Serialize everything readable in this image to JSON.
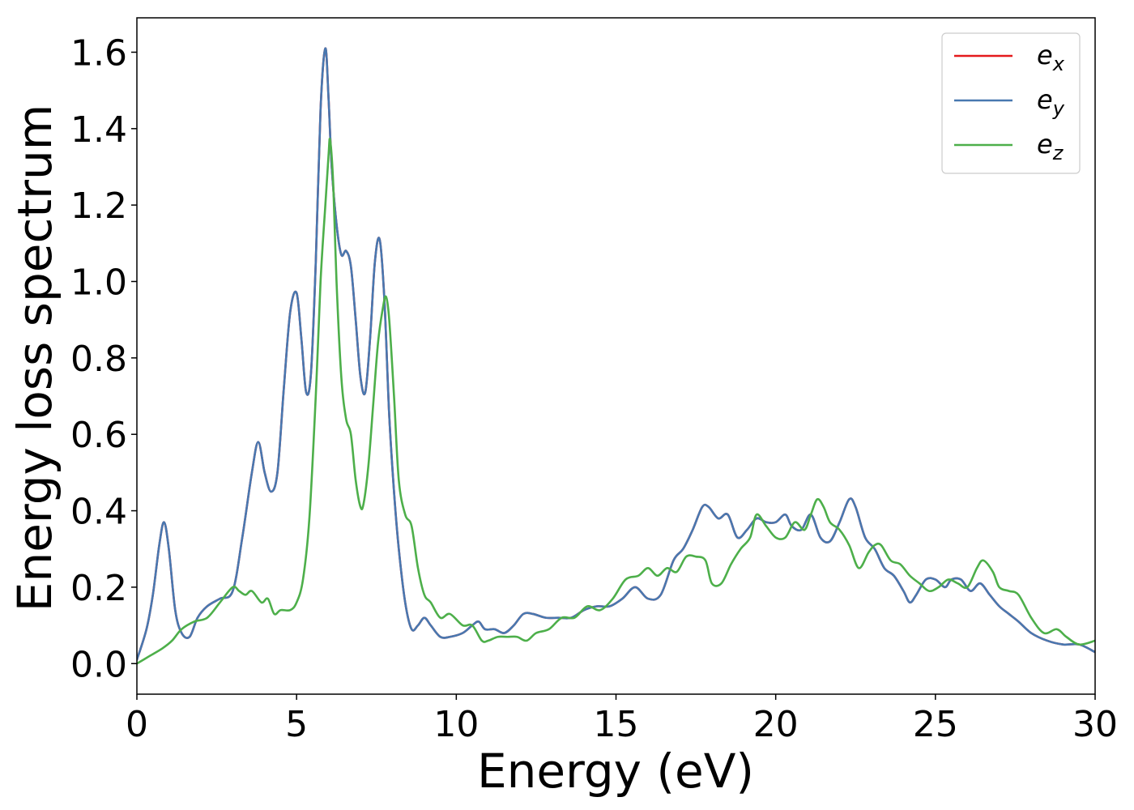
{
  "chart_data": {
    "type": "line",
    "title": "",
    "xlabel": "Energy (eV)",
    "ylabel": "Energy loss spectrum",
    "xlim": [
      0,
      30
    ],
    "ylim": [
      -0.08,
      1.69
    ],
    "x_ticks": [
      0,
      5,
      10,
      15,
      20,
      25,
      30
    ],
    "x_tick_labels": [
      "0",
      "5",
      "10",
      "15",
      "20",
      "25",
      "30"
    ],
    "y_ticks": [
      0.0,
      0.2,
      0.4,
      0.6,
      0.8,
      1.0,
      1.2,
      1.4,
      1.6
    ],
    "y_tick_labels": [
      "0.0",
      "0.2",
      "0.4",
      "0.6",
      "0.8",
      "1.0",
      "1.2",
      "1.4",
      "1.6"
    ],
    "grid": false,
    "legend_position": "top-right",
    "series": [
      {
        "name": "e",
        "subscript": "x",
        "color": "#e41a1c",
        "x": [
          0,
          0.3,
          0.5,
          0.7,
          0.85,
          1.0,
          1.2,
          1.4,
          1.65,
          1.9,
          2.2,
          2.6,
          3.0,
          3.3,
          3.6,
          3.8,
          4.0,
          4.2,
          4.4,
          4.6,
          4.8,
          5.0,
          5.15,
          5.3,
          5.45,
          5.6,
          5.75,
          5.9,
          6.0,
          6.1,
          6.25,
          6.4,
          6.55,
          6.7,
          6.85,
          7.0,
          7.15,
          7.3,
          7.45,
          7.6,
          7.75,
          7.9,
          8.05,
          8.2,
          8.4,
          8.6,
          8.8,
          9.0,
          9.2,
          9.5,
          9.8,
          10.2,
          10.5,
          10.7,
          10.9,
          11.2,
          11.5,
          11.8,
          12.1,
          12.4,
          12.8,
          13.2,
          13.6,
          14.0,
          14.4,
          14.8,
          15.2,
          15.6,
          16.0,
          16.4,
          16.8,
          17.1,
          17.4,
          17.7,
          17.9,
          18.2,
          18.5,
          18.8,
          19.1,
          19.4,
          19.7,
          20.0,
          20.3,
          20.5,
          20.8,
          21.1,
          21.4,
          21.7,
          22.0,
          22.3,
          22.5,
          22.8,
          23.1,
          23.4,
          23.7,
          24.0,
          24.2,
          24.4,
          24.7,
          25.0,
          25.3,
          25.5,
          25.8,
          26.1,
          26.4,
          26.7,
          27.0,
          27.3,
          27.6,
          28.0,
          28.5,
          29.0,
          29.5,
          30.0
        ],
        "y": [
          0.01,
          0.09,
          0.18,
          0.31,
          0.37,
          0.3,
          0.14,
          0.08,
          0.07,
          0.12,
          0.15,
          0.17,
          0.19,
          0.33,
          0.5,
          0.58,
          0.5,
          0.45,
          0.5,
          0.72,
          0.92,
          0.97,
          0.85,
          0.71,
          0.76,
          1.05,
          1.45,
          1.61,
          1.48,
          1.3,
          1.15,
          1.07,
          1.08,
          1.04,
          0.9,
          0.75,
          0.71,
          0.85,
          1.05,
          1.11,
          0.95,
          0.65,
          0.45,
          0.3,
          0.16,
          0.09,
          0.1,
          0.12,
          0.1,
          0.07,
          0.07,
          0.08,
          0.1,
          0.11,
          0.09,
          0.09,
          0.08,
          0.1,
          0.13,
          0.13,
          0.12,
          0.12,
          0.12,
          0.14,
          0.15,
          0.15,
          0.17,
          0.2,
          0.17,
          0.18,
          0.27,
          0.3,
          0.35,
          0.41,
          0.41,
          0.38,
          0.39,
          0.33,
          0.35,
          0.38,
          0.37,
          0.37,
          0.39,
          0.36,
          0.35,
          0.39,
          0.33,
          0.32,
          0.37,
          0.43,
          0.41,
          0.33,
          0.3,
          0.25,
          0.23,
          0.19,
          0.16,
          0.18,
          0.22,
          0.22,
          0.2,
          0.22,
          0.22,
          0.19,
          0.21,
          0.18,
          0.15,
          0.13,
          0.11,
          0.08,
          0.06,
          0.05,
          0.05,
          0.03
        ]
      },
      {
        "name": "e",
        "subscript": "y",
        "color": "#4878b0",
        "x": [
          0,
          0.3,
          0.5,
          0.7,
          0.85,
          1.0,
          1.2,
          1.4,
          1.65,
          1.9,
          2.2,
          2.6,
          3.0,
          3.3,
          3.6,
          3.8,
          4.0,
          4.2,
          4.4,
          4.6,
          4.8,
          5.0,
          5.15,
          5.3,
          5.45,
          5.6,
          5.75,
          5.9,
          6.0,
          6.1,
          6.25,
          6.4,
          6.55,
          6.7,
          6.85,
          7.0,
          7.15,
          7.3,
          7.45,
          7.6,
          7.75,
          7.9,
          8.05,
          8.2,
          8.4,
          8.6,
          8.8,
          9.0,
          9.2,
          9.5,
          9.8,
          10.2,
          10.5,
          10.7,
          10.9,
          11.2,
          11.5,
          11.8,
          12.1,
          12.4,
          12.8,
          13.2,
          13.6,
          14.0,
          14.4,
          14.8,
          15.2,
          15.6,
          16.0,
          16.4,
          16.8,
          17.1,
          17.4,
          17.7,
          17.9,
          18.2,
          18.5,
          18.8,
          19.1,
          19.4,
          19.7,
          20.0,
          20.3,
          20.5,
          20.8,
          21.1,
          21.4,
          21.7,
          22.0,
          22.3,
          22.5,
          22.8,
          23.1,
          23.4,
          23.7,
          24.0,
          24.2,
          24.4,
          24.7,
          25.0,
          25.3,
          25.5,
          25.8,
          26.1,
          26.4,
          26.7,
          27.0,
          27.3,
          27.6,
          28.0,
          28.5,
          29.0,
          29.5,
          30.0
        ],
        "y": [
          0.01,
          0.09,
          0.18,
          0.31,
          0.37,
          0.3,
          0.14,
          0.08,
          0.07,
          0.12,
          0.15,
          0.17,
          0.19,
          0.33,
          0.5,
          0.58,
          0.5,
          0.45,
          0.5,
          0.72,
          0.92,
          0.97,
          0.85,
          0.71,
          0.76,
          1.05,
          1.45,
          1.61,
          1.48,
          1.3,
          1.15,
          1.07,
          1.08,
          1.04,
          0.9,
          0.75,
          0.71,
          0.85,
          1.05,
          1.11,
          0.95,
          0.65,
          0.45,
          0.3,
          0.16,
          0.09,
          0.1,
          0.12,
          0.1,
          0.07,
          0.07,
          0.08,
          0.1,
          0.11,
          0.09,
          0.09,
          0.08,
          0.1,
          0.13,
          0.13,
          0.12,
          0.12,
          0.12,
          0.14,
          0.15,
          0.15,
          0.17,
          0.2,
          0.17,
          0.18,
          0.27,
          0.3,
          0.35,
          0.41,
          0.41,
          0.38,
          0.39,
          0.33,
          0.35,
          0.38,
          0.37,
          0.37,
          0.39,
          0.36,
          0.35,
          0.39,
          0.33,
          0.32,
          0.37,
          0.43,
          0.41,
          0.33,
          0.3,
          0.25,
          0.23,
          0.19,
          0.16,
          0.18,
          0.22,
          0.22,
          0.2,
          0.22,
          0.22,
          0.19,
          0.21,
          0.18,
          0.15,
          0.13,
          0.11,
          0.08,
          0.06,
          0.05,
          0.05,
          0.03
        ]
      },
      {
        "name": "e",
        "subscript": "z",
        "color": "#4daf4a",
        "x": [
          0,
          0.4,
          0.8,
          1.1,
          1.4,
          1.8,
          2.2,
          2.6,
          3.0,
          3.2,
          3.4,
          3.6,
          3.9,
          4.1,
          4.3,
          4.5,
          4.8,
          5.0,
          5.2,
          5.4,
          5.6,
          5.75,
          5.9,
          6.0,
          6.05,
          6.15,
          6.25,
          6.4,
          6.55,
          6.7,
          6.85,
          7.0,
          7.1,
          7.25,
          7.4,
          7.55,
          7.7,
          7.8,
          7.9,
          8.05,
          8.2,
          8.4,
          8.6,
          8.8,
          9.0,
          9.2,
          9.5,
          9.8,
          10.2,
          10.5,
          10.8,
          11.0,
          11.3,
          11.6,
          11.9,
          12.2,
          12.5,
          12.9,
          13.3,
          13.7,
          14.1,
          14.5,
          14.9,
          15.3,
          15.7,
          16.0,
          16.3,
          16.6,
          16.9,
          17.2,
          17.5,
          17.8,
          18.0,
          18.3,
          18.6,
          18.9,
          19.2,
          19.4,
          19.7,
          20.0,
          20.3,
          20.6,
          20.9,
          21.1,
          21.3,
          21.5,
          21.7,
          22.0,
          22.3,
          22.6,
          22.9,
          23.1,
          23.3,
          23.6,
          23.9,
          24.2,
          24.5,
          24.8,
          25.1,
          25.4,
          25.7,
          26.0,
          26.3,
          26.5,
          26.8,
          27.0,
          27.3,
          27.6,
          28.0,
          28.4,
          28.8,
          29.1,
          29.5,
          30.0
        ],
        "y": [
          0.0,
          0.02,
          0.04,
          0.06,
          0.09,
          0.11,
          0.12,
          0.16,
          0.2,
          0.19,
          0.18,
          0.19,
          0.16,
          0.17,
          0.13,
          0.14,
          0.14,
          0.16,
          0.22,
          0.38,
          0.7,
          1.0,
          1.2,
          1.33,
          1.37,
          1.25,
          1.0,
          0.75,
          0.64,
          0.6,
          0.48,
          0.41,
          0.42,
          0.52,
          0.68,
          0.84,
          0.93,
          0.96,
          0.9,
          0.7,
          0.48,
          0.39,
          0.36,
          0.25,
          0.18,
          0.16,
          0.12,
          0.13,
          0.1,
          0.1,
          0.06,
          0.06,
          0.07,
          0.07,
          0.07,
          0.06,
          0.08,
          0.09,
          0.12,
          0.12,
          0.15,
          0.14,
          0.17,
          0.22,
          0.23,
          0.25,
          0.23,
          0.25,
          0.24,
          0.28,
          0.28,
          0.27,
          0.21,
          0.21,
          0.26,
          0.3,
          0.33,
          0.39,
          0.36,
          0.33,
          0.33,
          0.37,
          0.35,
          0.39,
          0.43,
          0.41,
          0.37,
          0.35,
          0.31,
          0.25,
          0.29,
          0.31,
          0.31,
          0.27,
          0.26,
          0.23,
          0.21,
          0.19,
          0.2,
          0.22,
          0.21,
          0.2,
          0.25,
          0.27,
          0.24,
          0.2,
          0.19,
          0.18,
          0.12,
          0.08,
          0.09,
          0.07,
          0.05,
          0.06
        ]
      }
    ]
  }
}
